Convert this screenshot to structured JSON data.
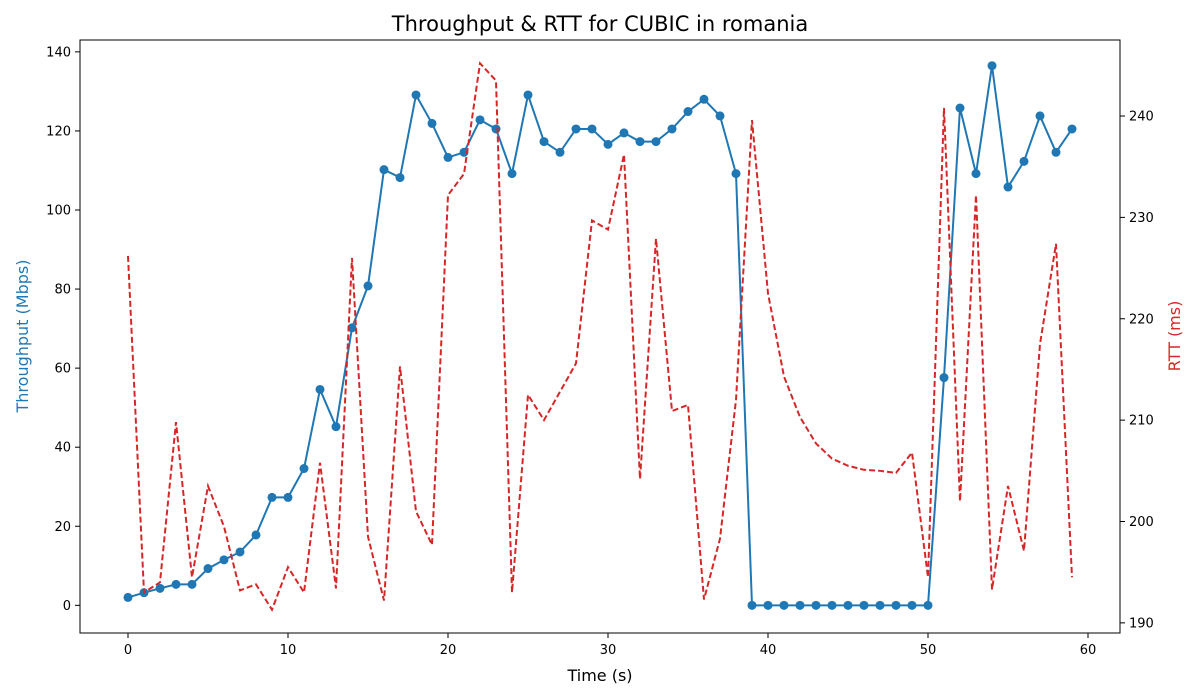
{
  "chart_data": {
    "type": "line",
    "title": "Throughput & RTT for CUBIC in romania",
    "xlabel": "Time (s)",
    "ylabel_left": "Throughput (Mbps)",
    "ylabel_right": "RTT (ms)",
    "xlim": [
      -3,
      62
    ],
    "ylim_left": [
      -7,
      143
    ],
    "ylim_right": [
      189,
      247.5
    ],
    "x_ticks": [
      0,
      10,
      20,
      30,
      40,
      50,
      60
    ],
    "y_ticks_left": [
      0,
      20,
      40,
      60,
      80,
      100,
      120,
      140
    ],
    "y_ticks_right": [
      190,
      200,
      210,
      220,
      230,
      240
    ],
    "grid": false,
    "colors": {
      "throughput": "#1f77b4",
      "rtt": "#d62728"
    },
    "x": [
      0,
      1,
      2,
      3,
      4,
      5,
      6,
      7,
      8,
      9,
      10,
      11,
      12,
      13,
      14,
      15,
      16,
      17,
      18,
      19,
      20,
      21,
      22,
      23,
      24,
      25,
      26,
      27,
      28,
      29,
      30,
      31,
      32,
      33,
      34,
      35,
      36,
      37,
      38,
      39,
      40,
      41,
      42,
      43,
      44,
      45,
      46,
      47,
      48,
      49,
      50,
      51,
      52,
      53,
      54,
      55,
      56,
      57,
      58,
      59
    ],
    "series": [
      {
        "axis": "left",
        "style": "solid-markers",
        "values": [
          2,
          3.2,
          4.3,
          5.3,
          5.3,
          9.3,
          11.5,
          13.5,
          17.8,
          27.3,
          27.3,
          34.6,
          54.6,
          45.2,
          70.2,
          80.8,
          110.2,
          108.2,
          129.1,
          121.9,
          113.3,
          114.6,
          122.8,
          120.5,
          109.2,
          129.1,
          117.3,
          114.6,
          120.5,
          120.5,
          116.6,
          119.5,
          117.3,
          117.3,
          120.5,
          124.9,
          128,
          123.8,
          109.2,
          0,
          0,
          0,
          0,
          0,
          0,
          0,
          0,
          0,
          0,
          0,
          0,
          57.6,
          125.8,
          109.2,
          136.5,
          105.8,
          112.3,
          123.8,
          114.6,
          120.5
        ]
      },
      {
        "axis": "right",
        "style": "dashed",
        "values": [
          226.2,
          193,
          194,
          209.8,
          194.5,
          203.5,
          199.5,
          193.2,
          193.8,
          191.3,
          195.5,
          193,
          205.8,
          193.4,
          226,
          198.5,
          192.2,
          215.3,
          201,
          197.7,
          232.2,
          234.3,
          245.2,
          243.5,
          193,
          212.5,
          210,
          212.8,
          215.6,
          229.7,
          228.8,
          236.2,
          204.2,
          227.9,
          210.9,
          211.5,
          192.3,
          198.3,
          212,
          239.6,
          222.5,
          214.3,
          210.3,
          207.7,
          206.2,
          205.5,
          205.1,
          205,
          204.8,
          206.8,
          194.5,
          240.8,
          202,
          232.2,
          193.3,
          203.5,
          197.1,
          217.5,
          227.4,
          194.5
        ]
      }
    ]
  }
}
